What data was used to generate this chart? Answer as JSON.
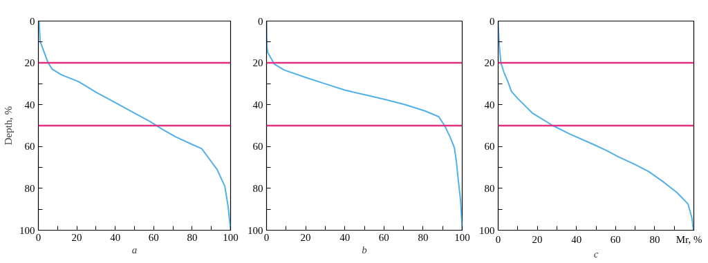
{
  "chart_data": [
    {
      "type": "line",
      "xlabel": "a",
      "ylabel": "Depth, %",
      "xlim": [
        0,
        100
      ],
      "ylim": [
        100,
        0
      ],
      "xticks": [
        0,
        {
          "value": 10,
          "label": null
        },
        20,
        {
          "value": 30,
          "label": null
        },
        40,
        {
          "value": 50,
          "label": null
        },
        60,
        {
          "value": 70,
          "label": null
        },
        80,
        {
          "value": 90,
          "label": null
        },
        100
      ],
      "yticks": [
        0,
        {
          "value": 10,
          "label": null
        },
        20,
        {
          "value": 30,
          "label": null
        },
        40,
        {
          "value": 50,
          "label": null
        },
        60,
        {
          "value": 70,
          "label": null
        },
        80,
        {
          "value": 90,
          "label": null
        },
        100
      ],
      "grid": false,
      "ref_lines": [
        {
          "axis": "y",
          "value": 20,
          "color": "#e0307f"
        },
        {
          "axis": "y",
          "value": 50,
          "color": "#e0307f"
        }
      ],
      "series": [
        {
          "color": "#4fb0ea",
          "x": [
            0.4,
            0.9,
            3.2,
            5.1,
            7.2,
            12,
            21,
            30,
            40,
            50,
            58,
            65,
            71.5,
            80,
            85,
            89,
            93,
            97,
            98.7,
            100
          ],
          "values": [
            0,
            9.7,
            15.4,
            20,
            23,
            25.7,
            29,
            34,
            39,
            44,
            48,
            52,
            55.4,
            59,
            61,
            66,
            71,
            79,
            88.6,
            100
          ]
        }
      ]
    },
    {
      "type": "line",
      "xlabel": "b",
      "xlim": [
        0,
        100
      ],
      "ylim": [
        100,
        0
      ],
      "xticks": [
        0,
        {
          "value": 10,
          "label": null
        },
        20,
        {
          "value": 30,
          "label": null
        },
        40,
        {
          "value": 50,
          "label": null
        },
        60,
        {
          "value": 70,
          "label": null
        },
        80,
        {
          "value": 90,
          "label": null
        },
        100
      ],
      "yticks": [
        0,
        {
          "value": 10,
          "label": null
        },
        20,
        {
          "value": 30,
          "label": null
        },
        40,
        {
          "value": 50,
          "label": null
        },
        60,
        {
          "value": 70,
          "label": null
        },
        80,
        {
          "value": 90,
          "label": null
        },
        100
      ],
      "grid": false,
      "ref_lines": [
        {
          "axis": "y",
          "value": 20,
          "color": "#e0307f"
        },
        {
          "axis": "y",
          "value": 50,
          "color": "#e0307f"
        }
      ],
      "series": [
        {
          "color": "#4fb0ea",
          "x": [
            0,
            0.2,
            0.6,
            2.4,
            4,
            9,
            20,
            30,
            40,
            51,
            61.5,
            71,
            81,
            88,
            91,
            93.8,
            96,
            97,
            98,
            99.2,
            100
          ],
          "values": [
            0,
            12,
            15,
            18,
            20.6,
            23.4,
            27,
            30,
            33,
            35.4,
            37.7,
            40,
            43,
            45.7,
            50,
            55.4,
            60.5,
            67,
            76,
            86,
            100
          ]
        }
      ]
    },
    {
      "type": "line",
      "xlabel": "c",
      "xlim": [
        0,
        100
      ],
      "ylim": [
        100,
        0
      ],
      "xticks": [
        0,
        {
          "value": 10,
          "label": null
        },
        20,
        {
          "value": 30,
          "label": null
        },
        40,
        {
          "value": 50,
          "label": null
        },
        60,
        {
          "value": 70,
          "label": null
        },
        80,
        {
          "value": 90,
          "label": null
        },
        {
          "value": 100,
          "label": "Mr, %"
        }
      ],
      "yticks": [
        0,
        {
          "value": 10,
          "label": null
        },
        20,
        {
          "value": 30,
          "label": null
        },
        40,
        {
          "value": 50,
          "label": null
        },
        60,
        {
          "value": 70,
          "label": null
        },
        80,
        {
          "value": 90,
          "label": null
        },
        100
      ],
      "grid": false,
      "ref_lines": [
        {
          "axis": "y",
          "value": 20,
          "color": "#e0307f"
        },
        {
          "axis": "y",
          "value": 50,
          "color": "#e0307f"
        }
      ],
      "series": [
        {
          "color": "#4fb0ea",
          "x": [
            0,
            0.6,
            1.4,
            3,
            5,
            6.8,
            10,
            17.5,
            28,
            36.6,
            48.5,
            55.6,
            61.6,
            70,
            77,
            84,
            91.4,
            97,
            99,
            99.8
          ],
          "values": [
            0,
            12,
            20,
            24.6,
            29,
            33.7,
            37,
            44,
            50,
            54,
            58.9,
            62,
            65,
            68.6,
            72,
            76.6,
            82,
            87.4,
            94,
            100
          ]
        }
      ]
    }
  ]
}
